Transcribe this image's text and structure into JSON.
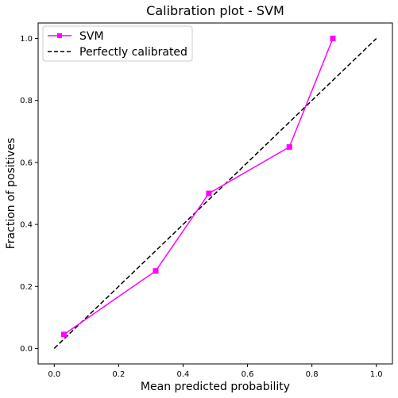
{
  "chart_data": {
    "type": "line",
    "title": "Calibration plot - SVM",
    "xlabel": "Mean predicted probability",
    "ylabel": "Fraction of positives",
    "xlim": [
      -0.05,
      1.05
    ],
    "ylim": [
      -0.05,
      1.05
    ],
    "xticks": [
      "0.0",
      "0.2",
      "0.4",
      "0.6",
      "0.8",
      "1.0"
    ],
    "yticks": [
      "0.0",
      "0.2",
      "0.4",
      "0.6",
      "0.8",
      "1.0"
    ],
    "grid": false,
    "legend_position": "upper-left",
    "series": [
      {
        "name": "SVM",
        "color": "#ff00ff",
        "marker": "square",
        "line_style": "solid",
        "x": [
          0.03,
          0.315,
          0.48,
          0.73,
          0.865
        ],
        "y": [
          0.045,
          0.25,
          0.5,
          0.65,
          1.0
        ]
      },
      {
        "name": "Perfectly calibrated",
        "color": "#000000",
        "marker": "none",
        "line_style": "dashed",
        "x": [
          0.0,
          1.0
        ],
        "y": [
          0.0,
          1.0
        ]
      }
    ]
  }
}
